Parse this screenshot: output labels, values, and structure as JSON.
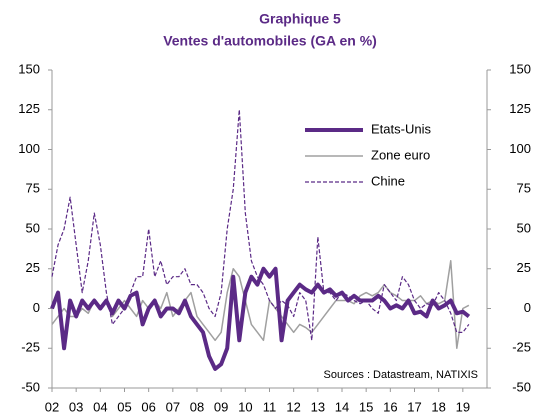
{
  "chart_data": {
    "type": "line",
    "title": "Graphique 5",
    "subtitle": "Ventes d'automobiles (GA en %)",
    "annotation": "Sources : Datastream, NATIXIS",
    "legend": "upper right",
    "xlim": [
      2002,
      2020
    ],
    "xticks": [
      {
        "value": 2002,
        "label": "02"
      },
      {
        "value": 2003,
        "label": "03"
      },
      {
        "value": 2004,
        "label": "04"
      },
      {
        "value": 2005,
        "label": "05"
      },
      {
        "value": 2006,
        "label": "06"
      },
      {
        "value": 2007,
        "label": "07"
      },
      {
        "value": 2008,
        "label": "08"
      },
      {
        "value": 2009,
        "label": "09"
      },
      {
        "value": 2010,
        "label": "10"
      },
      {
        "value": 2011,
        "label": "11"
      },
      {
        "value": 2012,
        "label": "12"
      },
      {
        "value": 2013,
        "label": "13"
      },
      {
        "value": 2014,
        "label": "14"
      },
      {
        "value": 2015,
        "label": "15"
      },
      {
        "value": 2016,
        "label": "16"
      },
      {
        "value": 2017,
        "label": "17"
      },
      {
        "value": 2018,
        "label": "18"
      },
      {
        "value": 2019,
        "label": "19"
      }
    ],
    "ylim": [
      -50,
      150
    ],
    "yticks": [
      -50,
      -25,
      0,
      25,
      50,
      75,
      100,
      125,
      150
    ],
    "y2lim": [
      -50,
      150
    ],
    "y2ticks": [
      -50,
      -25,
      0,
      25,
      50,
      75,
      100,
      125,
      150
    ],
    "x": [
      2002,
      2002.25,
      2002.5,
      2002.75,
      2003,
      2003.25,
      2003.5,
      2003.75,
      2004,
      2004.25,
      2004.5,
      2004.75,
      2005,
      2005.25,
      2005.5,
      2005.75,
      2006,
      2006.25,
      2006.5,
      2006.75,
      2007,
      2007.25,
      2007.5,
      2007.75,
      2008,
      2008.25,
      2008.5,
      2008.75,
      2009,
      2009.25,
      2009.5,
      2009.75,
      2010,
      2010.25,
      2010.5,
      2010.75,
      2011,
      2011.25,
      2011.5,
      2011.75,
      2012,
      2012.25,
      2012.5,
      2012.75,
      2013,
      2013.25,
      2013.5,
      2013.75,
      2014,
      2014.25,
      2014.5,
      2014.75,
      2015,
      2015.25,
      2015.5,
      2015.75,
      2016,
      2016.25,
      2016.5,
      2016.75,
      2017,
      2017.25,
      2017.5,
      2017.75,
      2018,
      2018.25,
      2018.5,
      2018.75,
      2019,
      2019.25
    ],
    "series": [
      {
        "name": "Etats-Unis",
        "color": "#5b2a86",
        "width": 4,
        "dash": "none",
        "values": [
          0,
          10,
          -25,
          5,
          -5,
          5,
          0,
          5,
          0,
          5,
          -3,
          5,
          0,
          8,
          10,
          -10,
          0,
          5,
          -5,
          0,
          0,
          -3,
          5,
          -5,
          -10,
          -15,
          -30,
          -38,
          -35,
          -25,
          20,
          -20,
          10,
          20,
          15,
          25,
          20,
          25,
          -20,
          5,
          10,
          15,
          12,
          10,
          15,
          10,
          12,
          8,
          10,
          5,
          8,
          5,
          5,
          5,
          8,
          5,
          0,
          2,
          0,
          5,
          -3,
          -2,
          -5,
          5,
          0,
          2,
          5,
          -3,
          -2,
          -5
        ]
      },
      {
        "name": "Zone euro",
        "color": "#a0a0a0",
        "width": 1.5,
        "dash": "none",
        "values": [
          -10,
          -5,
          0,
          -5,
          -5,
          0,
          -3,
          5,
          0,
          5,
          -5,
          0,
          5,
          0,
          -5,
          5,
          0,
          5,
          0,
          10,
          -5,
          0,
          5,
          10,
          -5,
          -10,
          -15,
          -20,
          -15,
          10,
          25,
          20,
          5,
          -10,
          -15,
          -20,
          5,
          0,
          -5,
          -10,
          -15,
          -10,
          -12,
          -15,
          -10,
          -5,
          0,
          5,
          5,
          5,
          3,
          8,
          10,
          8,
          10,
          15,
          10,
          8,
          5,
          5,
          5,
          8,
          3,
          5,
          3,
          5,
          30,
          -25,
          0,
          2
        ]
      },
      {
        "name": "Chine",
        "color": "#5b2a86",
        "width": 1.2,
        "dash": "4 2",
        "values": [
          20,
          40,
          50,
          70,
          40,
          10,
          30,
          60,
          40,
          10,
          -10,
          -5,
          0,
          10,
          20,
          20,
          50,
          20,
          30,
          15,
          20,
          20,
          25,
          15,
          15,
          10,
          0,
          -5,
          10,
          50,
          75,
          125,
          60,
          30,
          20,
          15,
          5,
          0,
          5,
          2,
          -5,
          10,
          5,
          -20,
          45,
          10,
          10,
          5,
          10,
          8,
          5,
          3,
          5,
          0,
          -3,
          15,
          10,
          5,
          20,
          15,
          5,
          0,
          3,
          2,
          10,
          5,
          -3,
          -15,
          -15,
          -10
        ]
      }
    ]
  }
}
